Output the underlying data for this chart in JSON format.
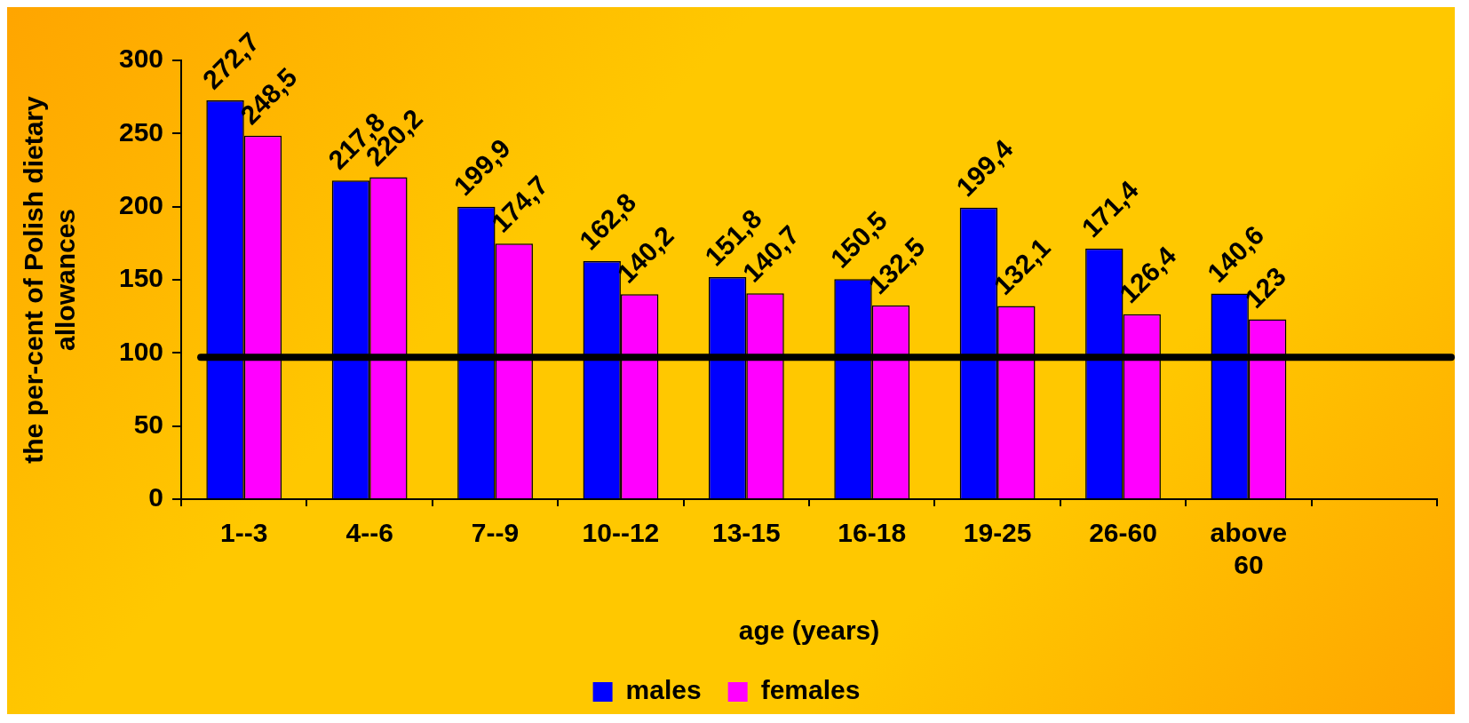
{
  "chart_data": {
    "type": "bar",
    "xlabel": "age (years)",
    "ylabel": "the per-cent of Polish dietary allowances",
    "categories": [
      "1--3",
      "4--6",
      "7--9",
      "10--12",
      "13-15",
      "16-18",
      "19-25",
      "26-60",
      "above 60",
      null
    ],
    "series": [
      {
        "name": "males",
        "color": "#0000ff",
        "values": [
          272.7,
          217.8,
          199.9,
          162.8,
          151.8,
          150.5,
          199.4,
          171.4,
          140.6,
          null
        ],
        "value_labels": [
          "272,7",
          "217,8",
          "199,9",
          "162,8",
          "151,8",
          "150,5",
          "199,4",
          "171,4",
          "140,6",
          null
        ]
      },
      {
        "name": "females",
        "color": "#ff00ff",
        "values": [
          248.5,
          220.2,
          174.7,
          140.2,
          140.7,
          132.5,
          132.1,
          126.4,
          123,
          null
        ],
        "value_labels": [
          "248,5",
          "220,2",
          "174,7",
          "140,2",
          "140,7",
          "132,5",
          "132,1",
          "126,4",
          "123",
          null
        ]
      }
    ],
    "ylim": [
      0,
      300
    ],
    "yticks": [
      0,
      50,
      100,
      150,
      200,
      250,
      300
    ],
    "grid": false,
    "legend": "bottom",
    "ref_lines": [
      {
        "axis": "y",
        "value": 97,
        "color": "#000000"
      }
    ]
  }
}
